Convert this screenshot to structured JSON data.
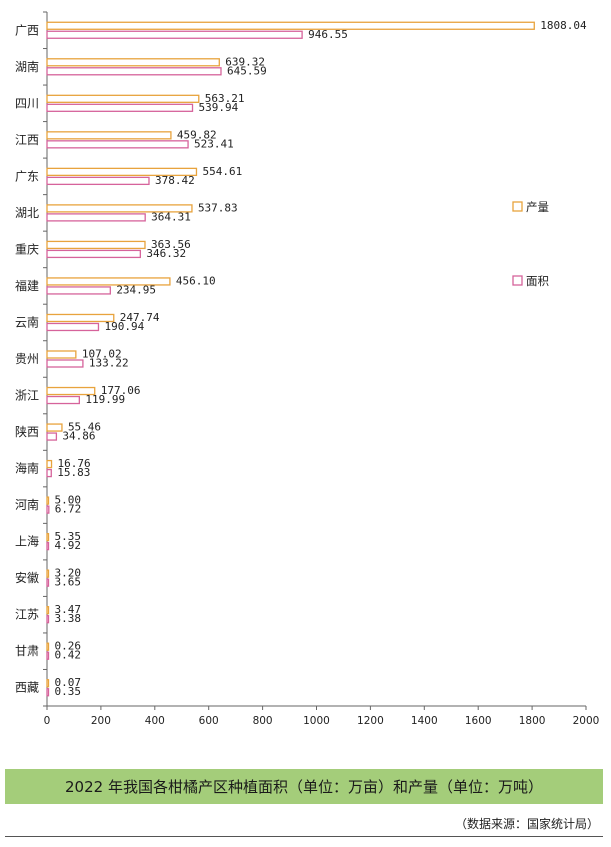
{
  "chart_data": {
    "type": "bar",
    "orientation": "horizontal",
    "categories": [
      "广西",
      "湖南",
      "四川",
      "江西",
      "广东",
      "湖北",
      "重庆",
      "福建",
      "云南",
      "贵州",
      "浙江",
      "陕西",
      "海南",
      "河南",
      "上海",
      "安徽",
      "江苏",
      "甘肃",
      "西藏"
    ],
    "series": [
      {
        "name": "产量",
        "color": "#e8a33d",
        "values": [
          1808.04,
          639.32,
          563.21,
          459.82,
          554.61,
          537.83,
          363.56,
          456.1,
          247.74,
          107.02,
          177.06,
          55.46,
          16.76,
          5.0,
          5.35,
          3.2,
          3.47,
          0.26,
          0.07
        ],
        "labels": [
          "1808.04",
          "639.32",
          "563.21",
          "459.82",
          "554.61",
          "537.83",
          "363.56",
          "456.10",
          "247.74",
          "107.02",
          "177.06",
          "55.46",
          "16.76",
          "5.00",
          "5.35",
          "3.20",
          "3.47",
          "0.26",
          "0.07"
        ]
      },
      {
        "name": "面积",
        "color": "#d6639b",
        "values": [
          946.55,
          645.59,
          539.94,
          523.41,
          378.42,
          364.31,
          346.32,
          234.95,
          190.94,
          133.22,
          119.99,
          34.86,
          15.83,
          6.72,
          4.92,
          3.65,
          3.38,
          0.42,
          0.35
        ],
        "labels": [
          "946.55",
          "645.59",
          "539.94",
          "523.41",
          "378.42",
          "364.31",
          "346.32",
          "234.95",
          "190.94",
          "133.22",
          "119.99",
          "34.86",
          "15.83",
          "6.72",
          "4.92",
          "3.65",
          "3.38",
          "0.42",
          "0.35"
        ]
      }
    ],
    "xlim": [
      0,
      2000
    ],
    "xticks": [
      "0",
      "200",
      "400",
      "600",
      "800",
      "1000",
      "1200",
      "1400",
      "1600",
      "1800",
      "2000"
    ],
    "legend_position": "right"
  },
  "caption": "2022 年我国各柑橘产区种植面积（单位：万亩）和产量（单位：万吨）",
  "source": "（数据来源：国家统计局）"
}
